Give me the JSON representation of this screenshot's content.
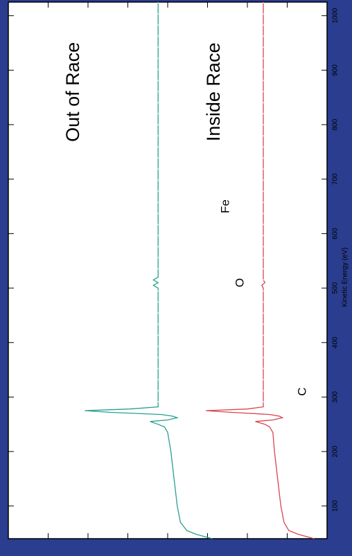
{
  "chart_data": {
    "type": "line",
    "orientation": "rotated-90",
    "xlabel": "Kinetic Energy (eV)",
    "xlim": [
      40,
      1025
    ],
    "x_ticks": [
      100,
      200,
      300,
      400,
      500,
      600,
      700,
      800,
      900,
      1000
    ],
    "grid": false,
    "series": [
      {
        "name": "Out of Race",
        "color": "#d9434e",
        "baseline_level": 0.8,
        "points": [
          [
            40,
            0.96
          ],
          [
            48,
            0.91
          ],
          [
            55,
            0.88
          ],
          [
            70,
            0.865
          ],
          [
            100,
            0.855
          ],
          [
            150,
            0.845
          ],
          [
            200,
            0.835
          ],
          [
            235,
            0.83
          ],
          [
            245,
            0.82
          ],
          [
            250,
            0.805
          ],
          [
            255,
            0.775
          ],
          [
            258,
            0.83
          ],
          [
            262,
            0.86
          ],
          [
            265,
            0.85
          ],
          [
            268,
            0.82
          ],
          [
            272,
            0.7
          ],
          [
            275,
            0.62
          ],
          [
            278,
            0.75
          ],
          [
            282,
            0.8
          ],
          [
            290,
            0.8
          ],
          [
            500,
            0.8
          ],
          [
            505,
            0.795
          ],
          [
            510,
            0.805
          ],
          [
            515,
            0.8
          ],
          [
            1025,
            0.8
          ]
        ]
      },
      {
        "name": "Inside Race",
        "color": "#26a08e",
        "baseline_level": 0.47,
        "points": [
          [
            40,
            0.64
          ],
          [
            48,
            0.59
          ],
          [
            55,
            0.56
          ],
          [
            70,
            0.54
          ],
          [
            100,
            0.53
          ],
          [
            150,
            0.52
          ],
          [
            200,
            0.51
          ],
          [
            235,
            0.5
          ],
          [
            245,
            0.49
          ],
          [
            250,
            0.47
          ],
          [
            255,
            0.445
          ],
          [
            258,
            0.5
          ],
          [
            262,
            0.53
          ],
          [
            265,
            0.515
          ],
          [
            268,
            0.48
          ],
          [
            272,
            0.32
          ],
          [
            275,
            0.24
          ],
          [
            278,
            0.38
          ],
          [
            282,
            0.47
          ],
          [
            290,
            0.47
          ],
          [
            500,
            0.47
          ],
          [
            505,
            0.455
          ],
          [
            510,
            0.47
          ],
          [
            515,
            0.455
          ],
          [
            520,
            0.47
          ],
          [
            1025,
            0.47
          ]
        ]
      }
    ],
    "annotations": {
      "out_of_race": "Out of Race",
      "inside_race": "Inside Race",
      "fe": "Fe",
      "o": "O",
      "c": "C"
    }
  }
}
